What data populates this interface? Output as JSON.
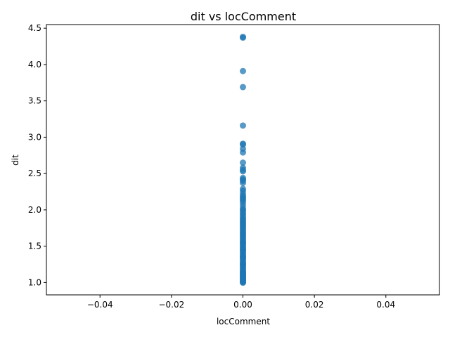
{
  "chart_data": {
    "type": "scatter",
    "title": "dit vs locComment",
    "xlabel": "locComment",
    "ylabel": "dit",
    "xlim": [
      -0.055,
      0.055
    ],
    "ylim": [
      0.83,
      4.55
    ],
    "xticks": [
      -0.04,
      -0.02,
      0.0,
      0.02,
      0.04
    ],
    "xtick_labels": [
      "−0.04",
      "−0.02",
      "0.00",
      "0.02",
      "0.04"
    ],
    "yticks": [
      1.0,
      1.5,
      2.0,
      2.5,
      3.0,
      3.5,
      4.0,
      4.5
    ],
    "ytick_labels": [
      "1.0",
      "1.5",
      "2.0",
      "2.5",
      "3.0",
      "3.5",
      "4.0",
      "4.5"
    ],
    "grid": false,
    "legend": "none",
    "marker_color": "#1f77b4",
    "marker_alpha": 0.75,
    "points": {
      "x": [
        0,
        0,
        0,
        0,
        0,
        0,
        0,
        0,
        0,
        0,
        0,
        0,
        0,
        0,
        0,
        0,
        0,
        0,
        0,
        0,
        0,
        0,
        0,
        0,
        0,
        0,
        0,
        0,
        0,
        0,
        0,
        0,
        0,
        0,
        0,
        0,
        0,
        0,
        0,
        0,
        0,
        0,
        0,
        0,
        0,
        0,
        0,
        0,
        0,
        0,
        0,
        0,
        0,
        0,
        0,
        0,
        0,
        0,
        0,
        0,
        0,
        0,
        0,
        0,
        0,
        0,
        0,
        0,
        0,
        0,
        0,
        0,
        0,
        0,
        0,
        0,
        0,
        0,
        0,
        0,
        0,
        0,
        0,
        0,
        0,
        0,
        0,
        0,
        0,
        0
      ],
      "y": [
        4.38,
        4.37,
        3.91,
        3.69,
        3.16,
        2.91,
        2.9,
        2.84,
        2.79,
        2.65,
        2.58,
        2.55,
        2.53,
        2.44,
        2.42,
        2.4,
        2.37,
        2.29,
        2.26,
        2.22,
        2.19,
        2.17,
        2.15,
        2.13,
        2.1,
        2.06,
        2.02,
        2.0,
        1.98,
        1.95,
        1.93,
        1.9,
        1.88,
        1.86,
        1.84,
        1.82,
        1.8,
        1.78,
        1.76,
        1.74,
        1.72,
        1.7,
        1.68,
        1.66,
        1.64,
        1.62,
        1.6,
        1.58,
        1.56,
        1.54,
        1.52,
        1.5,
        1.48,
        1.46,
        1.44,
        1.42,
        1.4,
        1.38,
        1.36,
        1.34,
        1.32,
        1.3,
        1.28,
        1.26,
        1.24,
        1.22,
        1.2,
        1.18,
        1.16,
        1.14,
        1.12,
        1.1,
        1.08,
        1.06,
        1.04,
        1.02,
        1.01,
        1.0,
        1.0,
        1.03,
        1.05,
        1.07,
        1.09,
        1.11,
        1.13,
        1.15,
        1.25,
        1.35,
        1.45,
        1.55
      ]
    }
  }
}
